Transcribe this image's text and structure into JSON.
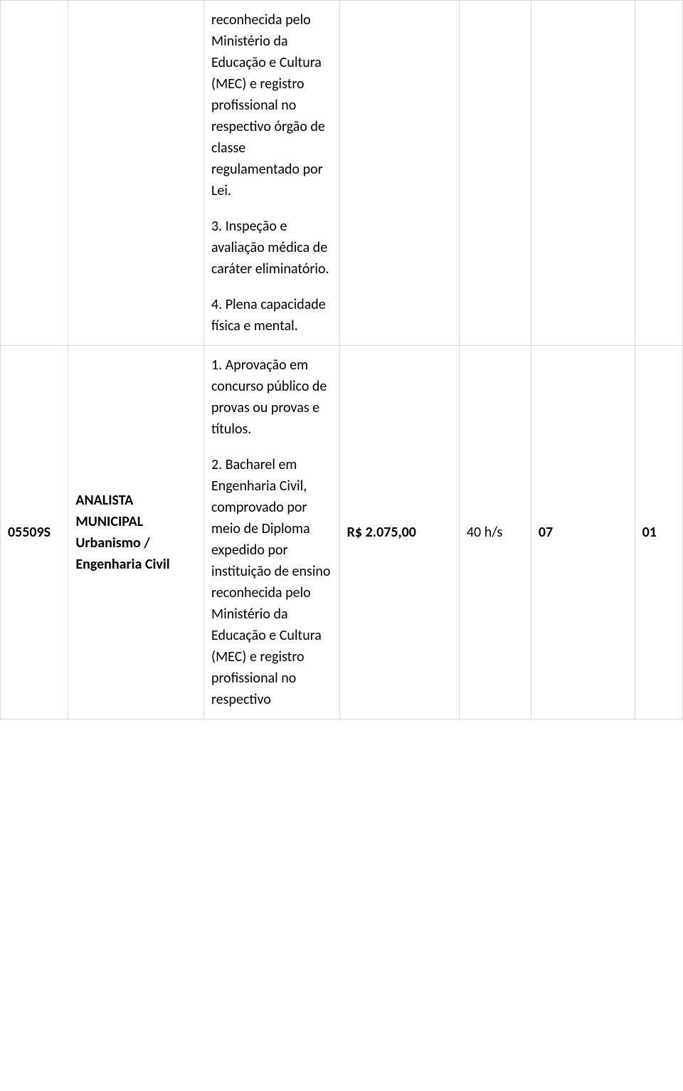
{
  "table": {
    "border_color": "#d9d9d9",
    "text_color": "#000000",
    "background_color": "#ffffff",
    "font_size": 20,
    "columns": {
      "code_width": 85,
      "title_width": 170,
      "desc_width": 170,
      "salary_width": 150,
      "hours_width": 90,
      "num1_width": 130,
      "num2_width": 60
    },
    "rows": [
      {
        "code": "",
        "title": "",
        "desc_paragraphs": [
          "reconhecida pelo Ministério da Educação e Cultura (MEC) e registro profissional no respectivo órgão de classe regulamentado por Lei.",
          "3. Inspeção e avaliação médica de caráter eliminatório.",
          "4. Plena capacidade física e mental."
        ],
        "salary": "",
        "hours": "",
        "num1": "",
        "num2": ""
      },
      {
        "code": "05509S",
        "title": "ANALISTA MUNICIPAL Urbanismo / Engenharia Civil",
        "desc_paragraphs": [
          "1. Aprovação em concurso público de provas ou provas e títulos.",
          "2. Bacharel em Engenharia Civil, comprovado por meio de Diploma expedido por instituição de ensino reconhecida pelo Ministério da Educação e Cultura (MEC) e registro profissional no respectivo"
        ],
        "salary": "R$ 2.075,00",
        "hours": "40 h/s",
        "num1": "07",
        "num2": "01"
      }
    ]
  }
}
